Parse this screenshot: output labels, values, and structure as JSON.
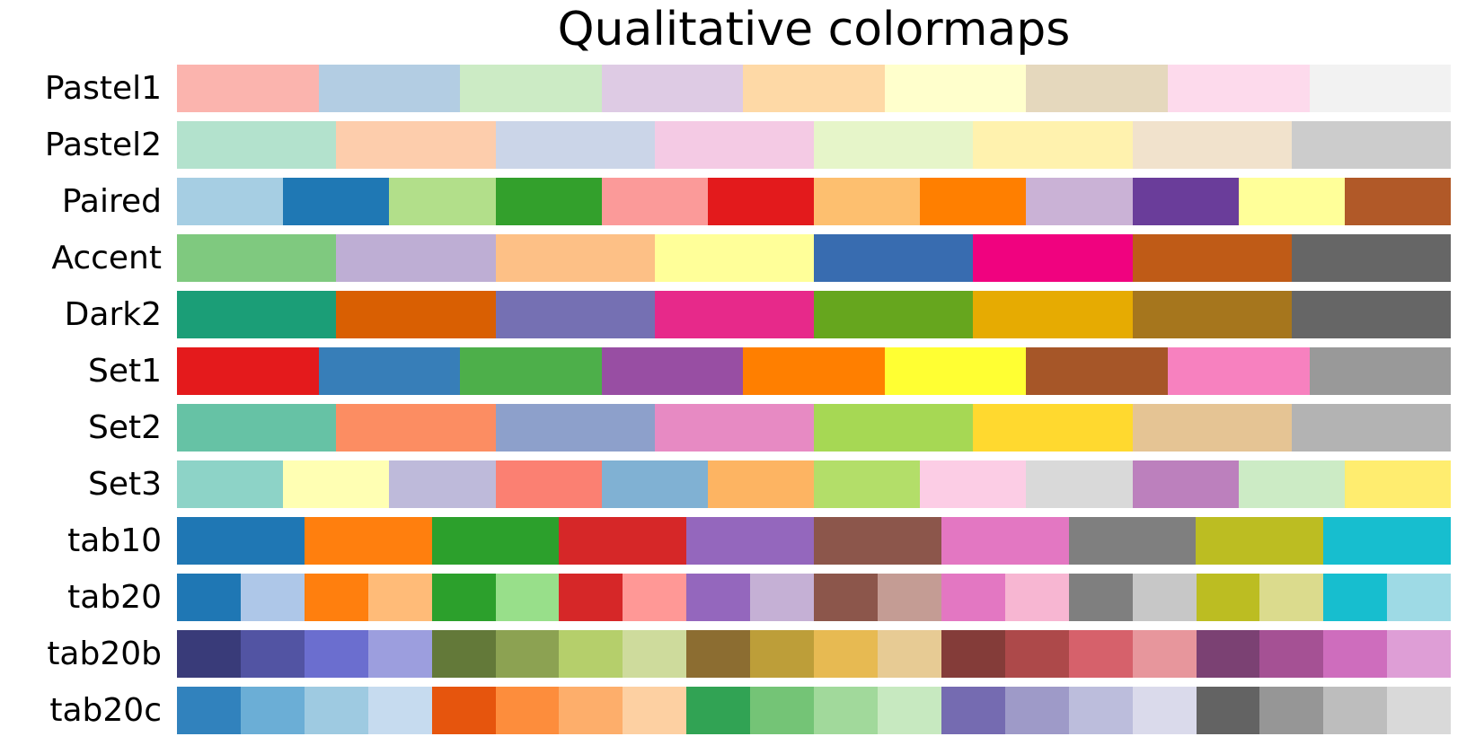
{
  "title": "Qualitative colormaps",
  "colors": {
    "background": "#ffffff",
    "text": "#000000"
  },
  "chart_data": {
    "type": "heatmap",
    "title": "Qualitative colormaps",
    "description_of_encoding": "each row is a colormap shown as equal-width color blocks",
    "legend": "none",
    "rows": [
      {
        "label": "Pastel1",
        "colors": [
          "#fbb4ae",
          "#b3cde3",
          "#ccebc5",
          "#decbe4",
          "#fed9a6",
          "#ffffcc",
          "#e5d8bd",
          "#fddaec",
          "#f2f2f2"
        ]
      },
      {
        "label": "Pastel2",
        "colors": [
          "#b3e2cd",
          "#fdcdac",
          "#cbd5e8",
          "#f4cae4",
          "#e6f5c9",
          "#fff2ae",
          "#f1e2cc",
          "#cccccc"
        ]
      },
      {
        "label": "Paired",
        "colors": [
          "#a6cee3",
          "#1f78b4",
          "#b2df8a",
          "#33a02c",
          "#fb9a99",
          "#e31a1c",
          "#fdbf6f",
          "#ff7f00",
          "#cab2d6",
          "#6a3d9a",
          "#ffff99",
          "#b15928"
        ]
      },
      {
        "label": "Accent",
        "colors": [
          "#7fc97f",
          "#beaed4",
          "#fdc086",
          "#ffff99",
          "#386cb0",
          "#f0027f",
          "#bf5b17",
          "#666666"
        ]
      },
      {
        "label": "Dark2",
        "colors": [
          "#1b9e77",
          "#d95f02",
          "#7570b3",
          "#e7298a",
          "#66a61e",
          "#e6ab02",
          "#a6761d",
          "#666666"
        ]
      },
      {
        "label": "Set1",
        "colors": [
          "#e41a1c",
          "#377eb8",
          "#4daf4a",
          "#984ea3",
          "#ff7f00",
          "#ffff33",
          "#a65628",
          "#f781bf",
          "#999999"
        ]
      },
      {
        "label": "Set2",
        "colors": [
          "#66c2a5",
          "#fc8d62",
          "#8da0cb",
          "#e78ac3",
          "#a6d854",
          "#ffd92f",
          "#e5c494",
          "#b3b3b3"
        ]
      },
      {
        "label": "Set3",
        "colors": [
          "#8dd3c7",
          "#ffffb3",
          "#bebada",
          "#fb8072",
          "#80b1d3",
          "#fdb462",
          "#b3de69",
          "#fccde5",
          "#d9d9d9",
          "#bc80bd",
          "#ccebc5",
          "#ffed6f"
        ]
      },
      {
        "label": "tab10",
        "colors": [
          "#1f77b4",
          "#ff7f0e",
          "#2ca02c",
          "#d62728",
          "#9467bd",
          "#8c564b",
          "#e377c2",
          "#7f7f7f",
          "#bcbd22",
          "#17becf"
        ]
      },
      {
        "label": "tab20",
        "colors": [
          "#1f77b4",
          "#aec7e8",
          "#ff7f0e",
          "#ffbb78",
          "#2ca02c",
          "#98df8a",
          "#d62728",
          "#ff9896",
          "#9467bd",
          "#c5b0d5",
          "#8c564b",
          "#c49c94",
          "#e377c2",
          "#f7b6d2",
          "#7f7f7f",
          "#c7c7c7",
          "#bcbd22",
          "#dbdb8d",
          "#17becf",
          "#9edae5"
        ]
      },
      {
        "label": "tab20b",
        "colors": [
          "#393b79",
          "#5254a3",
          "#6b6ecf",
          "#9c9ede",
          "#637939",
          "#8ca252",
          "#b5cf6b",
          "#cedb9c",
          "#8c6d31",
          "#bd9e39",
          "#e7ba52",
          "#e7cb94",
          "#843c39",
          "#ad494a",
          "#d6616b",
          "#e7969c",
          "#7b4173",
          "#a55194",
          "#ce6dbd",
          "#de9ed6"
        ]
      },
      {
        "label": "tab20c",
        "colors": [
          "#3182bd",
          "#6baed6",
          "#9ecae1",
          "#c6dbef",
          "#e6550d",
          "#fd8d3c",
          "#fdae6b",
          "#fdd0a2",
          "#31a354",
          "#74c476",
          "#a1d99b",
          "#c7e9c0",
          "#756bb1",
          "#9e9ac8",
          "#bcbddc",
          "#dadaeb",
          "#636363",
          "#969696",
          "#bdbdbd",
          "#d9d9d9"
        ]
      }
    ]
  }
}
